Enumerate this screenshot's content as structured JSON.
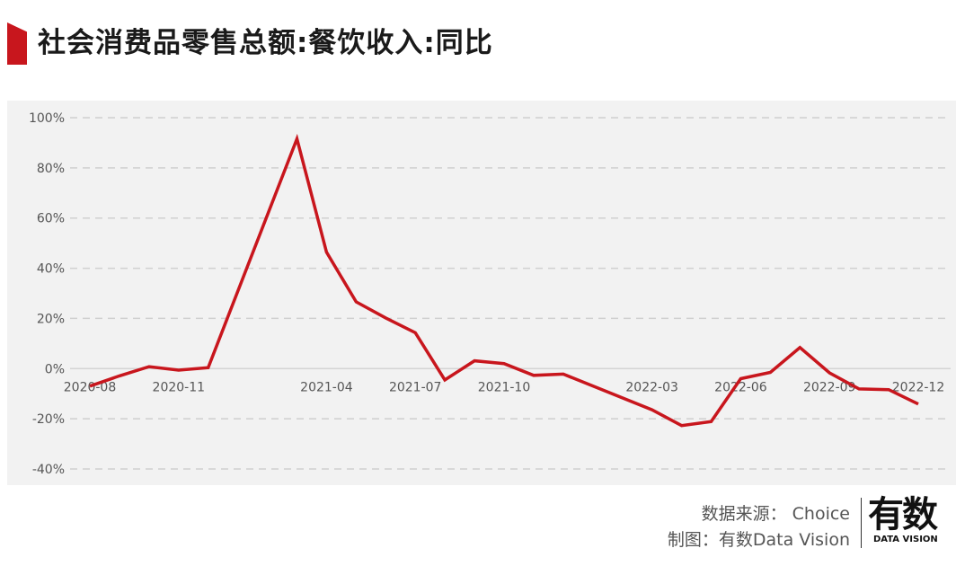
{
  "page": {
    "title": "社会消费品零售总额:餐饮收入:同比",
    "accent_color": "#c8161d"
  },
  "footer": {
    "source_line": "数据来源： Choice",
    "maker_line": "制图：有数Data Vision"
  },
  "logo": {
    "text_cn": "有数",
    "text_en": "DATA VISION"
  },
  "chart_data": {
    "type": "line",
    "title": "社会消费品零售总额:餐饮收入:同比",
    "xlabel": "",
    "ylabel": "",
    "ylim": [
      -40,
      100
    ],
    "yticks": [
      100,
      80,
      60,
      40,
      20,
      0,
      -20,
      -40
    ],
    "ytick_labels": [
      "100%",
      "80%",
      "60%",
      "40%",
      "20%",
      "0%",
      "-20%",
      "-40%"
    ],
    "xtick_labels": [
      "2020-08",
      "2020-11",
      "2021-04",
      "2021-07",
      "2021-10",
      "2022-03",
      "2022-06",
      "2022-09",
      "2022-12"
    ],
    "grid": true,
    "line_color": "#c8161d",
    "series": [
      {
        "x": [
          "2020-08",
          "2020-09",
          "2020-10",
          "2020-11",
          "2020-12",
          "2021-03",
          "2021-04",
          "2021-05",
          "2021-06",
          "2021-07",
          "2021-08",
          "2021-09",
          "2021-10",
          "2021-11",
          "2021-12",
          "2022-03",
          "2022-04",
          "2022-05",
          "2022-06",
          "2022-07",
          "2022-08",
          "2022-09",
          "2022-10",
          "2022-11",
          "2022-12"
        ],
        "values": [
          -7,
          -2.9,
          0.8,
          -0.6,
          0.4,
          91.6,
          46.4,
          26.6,
          20.2,
          14.3,
          -4.5,
          3.1,
          2.0,
          -2.7,
          -2.2,
          -16.4,
          -22.7,
          -21.1,
          -4.0,
          -1.5,
          8.4,
          -1.7,
          -8.1,
          -8.4,
          -14.1
        ]
      }
    ]
  }
}
